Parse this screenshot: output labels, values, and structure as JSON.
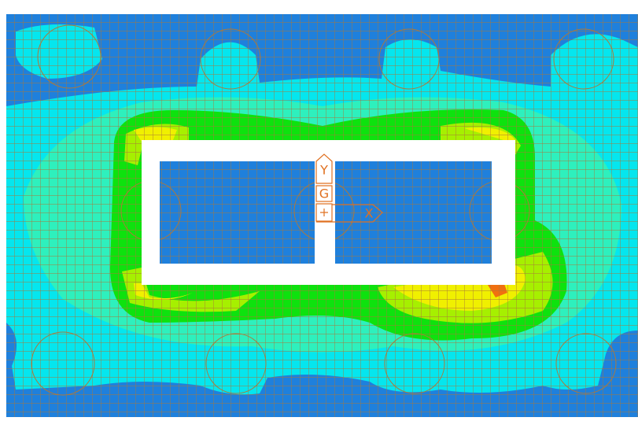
{
  "labels": {
    "y_axis": "Y",
    "origin": "G",
    "x_axis": "X"
  }
}
